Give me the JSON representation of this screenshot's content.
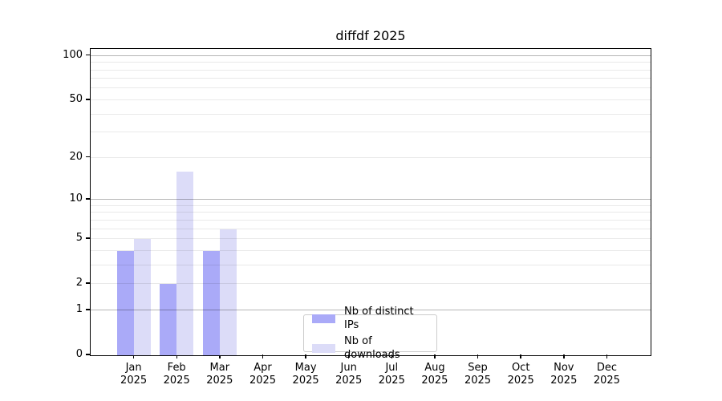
{
  "chart_data": {
    "type": "bar",
    "title": "diffdf 2025",
    "year_label": "2025",
    "categories": [
      "Jan",
      "Feb",
      "Mar",
      "Apr",
      "May",
      "Jun",
      "Jul",
      "Aug",
      "Sep",
      "Oct",
      "Nov",
      "Dec"
    ],
    "series": [
      {
        "name": "Nb of distinct IPs",
        "color": "#aaaaf8",
        "values": [
          4,
          2,
          4,
          0,
          0,
          0,
          0,
          0,
          0,
          0,
          0,
          0
        ]
      },
      {
        "name": "Nb of downloads",
        "color": "#dcdcf8",
        "values": [
          5,
          16,
          6,
          0,
          0,
          0,
          0,
          0,
          0,
          0,
          0,
          0
        ]
      }
    ],
    "yscale": "log1p",
    "ylim": [
      0,
      110
    ],
    "yticks": [
      0,
      1,
      2,
      5,
      10,
      20,
      50,
      100
    ],
    "gridlines": {
      "major": [
        1,
        10,
        100
      ],
      "minor": [
        2,
        3,
        4,
        5,
        6,
        7,
        8,
        9,
        20,
        30,
        40,
        50,
        60,
        70,
        80,
        90
      ]
    },
    "grid": true,
    "xlabel": "",
    "ylabel": "",
    "legend_position": "bottom-center",
    "colors": {
      "axis": "#000000",
      "grid_major": "#b5b5b5",
      "grid_minor": "#e8e8e8",
      "background": "#ffffff"
    }
  }
}
